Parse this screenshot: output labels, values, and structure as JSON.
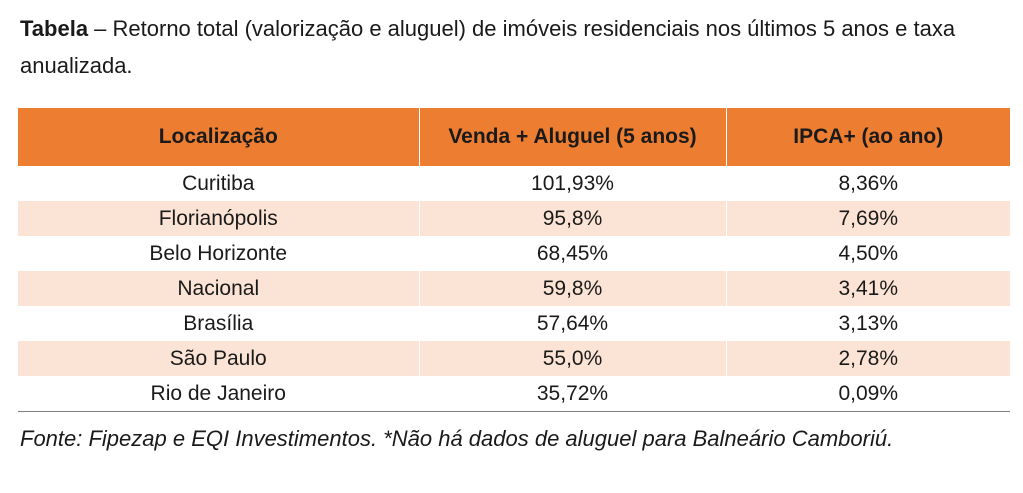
{
  "caption": {
    "label": "Tabela",
    "text": " – Retorno total (valorização e aluguel) de imóveis residenciais nos últimos 5 anos e taxa anualizada."
  },
  "table": {
    "headers": [
      "Localização",
      "Venda + Aluguel (5 anos)",
      "IPCA+ (ao ano)"
    ],
    "rows": [
      [
        "Curitiba",
        "101,93%",
        "8,36%"
      ],
      [
        "Florianópolis",
        "95,8%",
        "7,69%"
      ],
      [
        "Belo Horizonte",
        "68,45%",
        "4,50%"
      ],
      [
        "Nacional",
        "59,8%",
        "3,41%"
      ],
      [
        "Brasília",
        "57,64%",
        "3,13%"
      ],
      [
        "São Paulo",
        "55,0%",
        "2,78%"
      ],
      [
        "Rio de Janeiro",
        "35,72%",
        "0,09%"
      ]
    ],
    "header_color": "#ed7d31",
    "band_color": "#fbe4d5"
  },
  "source": "Fonte: Fipezap e EQI Investimentos. *Não há dados de aluguel para Balneário Camboriú."
}
